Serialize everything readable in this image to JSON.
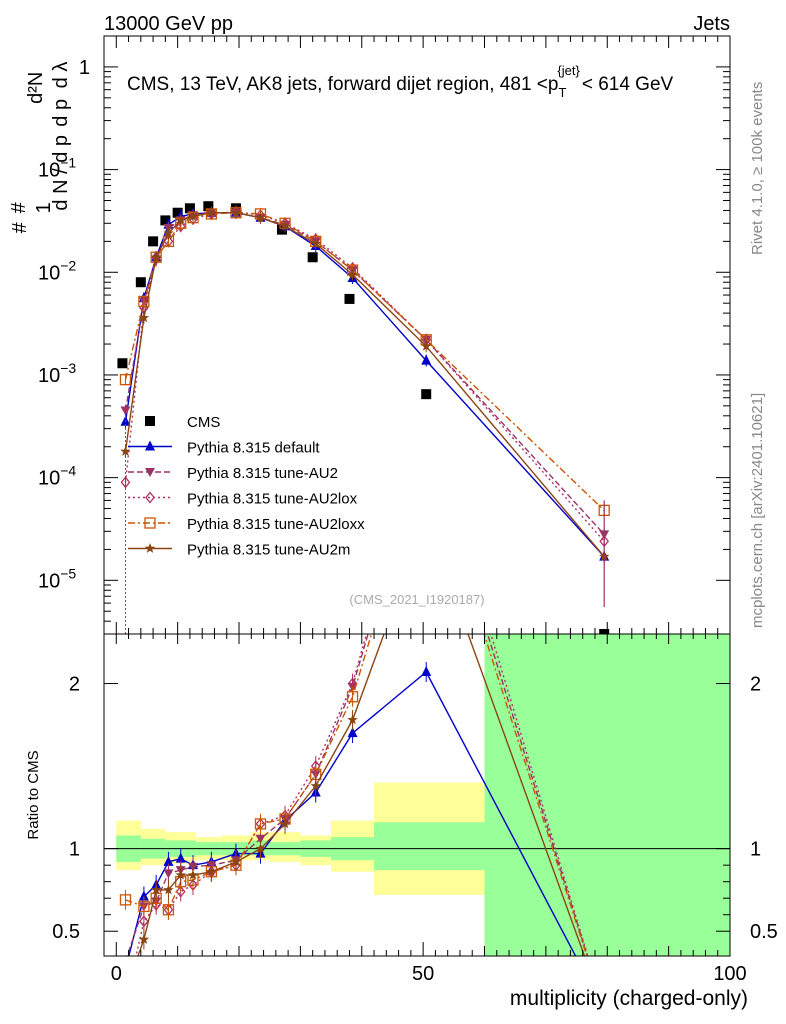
{
  "header": {
    "energy": "13000 GeV pp",
    "category": "Jets"
  },
  "side": {
    "rivet": "Rivet 4.1.0, ≥ 100k events",
    "mcplots": "mcplots.cern.ch [arXiv:2401.10621]"
  },
  "chart_data": [
    {
      "type": "scatter",
      "title": "CMS, 13 TeV, AK8 jets, forward dijet region, 481 <p_T^{jet}< 614 GeV",
      "title_parts": {
        "pre": "CMS, 13 TeV, AK8 jets, forward dijet region, 481 <p",
        "sub": "T",
        "sup": "{jet}",
        "post": "< 614 GeV"
      },
      "ylabel": "1/dN/dp_T  d²N/dp_T dλ",
      "ylabel_parts": {
        "num1": "#",
        "den1": "d N / d p",
        "num2": "#",
        "den2": "d p",
        "num3": "d²N",
        "den3": "d λ",
        "one": "1",
        "T": "T"
      },
      "yscale": "log",
      "ylim": [
        3e-06,
        2
      ],
      "xlim": [
        -2,
        100
      ],
      "yticks": [
        {
          "v": 1e-05,
          "base": "10",
          "exp": "−5"
        },
        {
          "v": 0.0001,
          "base": "10",
          "exp": "−4"
        },
        {
          "v": 0.001,
          "base": "10",
          "exp": "−3"
        },
        {
          "v": 0.01,
          "base": "10",
          "exp": "−2"
        },
        {
          "v": 0.1,
          "base": "10",
          "exp": "−1"
        },
        {
          "v": 1,
          "base": "1",
          "exp": ""
        }
      ],
      "watermark": "(CMS_2021_I1920187)",
      "series": [
        {
          "name": "CMS",
          "color": "#000000",
          "marker": "square",
          "style": "none",
          "x": [
            1,
            4,
            6,
            8,
            10,
            12,
            15,
            19.5,
            27,
            32,
            38,
            50.5,
            79.5
          ],
          "y": [
            0.0013,
            0.008,
            0.02,
            0.032,
            0.038,
            0.042,
            0.044,
            0.042,
            0.026,
            0.014,
            0.0055,
            0.00065,
            2.8e-06
          ]
        },
        {
          "name": "Pythia 8.315 default",
          "color": "#0000cc",
          "marker": "triangle-up",
          "style": "solid",
          "x": [
            1.5,
            4.5,
            6.5,
            8.5,
            10.5,
            12.5,
            15.5,
            19.5,
            23.5,
            27.5,
            32.5,
            38.5,
            50.5,
            79.5
          ],
          "y": [
            0.00035,
            0.0056,
            0.014,
            0.029,
            0.035,
            0.037,
            0.038,
            0.038,
            0.034,
            0.028,
            0.018,
            0.0088,
            0.00138,
            1.7e-05
          ]
        },
        {
          "name": "Pythia 8.315 tune-AU2",
          "color": "#993366",
          "marker": "triangle-down",
          "style": "dashed",
          "x": [
            1.5,
            4.5,
            6.5,
            8.5,
            10.5,
            12.5,
            15.5,
            19.5,
            23.5,
            27.5,
            32.5,
            38.5,
            50.5,
            79.5
          ],
          "y": [
            0.00045,
            0.0052,
            0.013,
            0.027,
            0.032,
            0.036,
            0.038,
            0.038,
            0.034,
            0.029,
            0.02,
            0.0105,
            0.0022,
            2.8e-05
          ]
        },
        {
          "name": "Pythia 8.315 tune-AU2lox",
          "color": "#b03060",
          "marker": "diamond-open",
          "style": "dotted",
          "x": [
            1.5,
            4.5,
            6.5,
            8.5,
            10.5,
            12.5,
            15.5,
            19.5,
            23.5,
            27.5,
            32.5,
            38.5,
            50.5,
            79.5
          ],
          "y": [
            9e-05,
            0.0045,
            0.014,
            0.02,
            0.028,
            0.033,
            0.037,
            0.039,
            0.036,
            0.03,
            0.021,
            0.011,
            0.0022,
            2.4e-05
          ]
        },
        {
          "name": "Pythia 8.315 tune-AU2loxx",
          "color": "#cc5500",
          "marker": "square-open",
          "style": "dashdot",
          "x": [
            1.5,
            4.5,
            6.5,
            8.5,
            10.5,
            12.5,
            15.5,
            19.5,
            23.5,
            27.5,
            32.5,
            38.5,
            50.5,
            79.5
          ],
          "y": [
            0.0009,
            0.0052,
            0.014,
            0.02,
            0.03,
            0.034,
            0.037,
            0.038,
            0.037,
            0.03,
            0.02,
            0.0105,
            0.0022,
            4.8e-05
          ]
        },
        {
          "name": "Pythia 8.315 tune-AU2m",
          "color": "#8b4513",
          "marker": "star",
          "style": "solid",
          "x": [
            1.5,
            4.5,
            6.5,
            8.5,
            10.5,
            12.5,
            15.5,
            19.5,
            23.5,
            27.5,
            32.5,
            38.5,
            50.5,
            79.5
          ],
          "y": [
            0.00018,
            0.0036,
            0.014,
            0.024,
            0.032,
            0.035,
            0.038,
            0.038,
            0.034,
            0.028,
            0.019,
            0.0095,
            0.0019,
            1.7e-05
          ]
        }
      ]
    },
    {
      "type": "line",
      "ylabel": "Ratio to CMS",
      "xlabel": "multiplicity (charged-only)",
      "ylim": [
        0.35,
        2.3
      ],
      "xlim": [
        -2,
        100
      ],
      "xticks": [
        0,
        50,
        100
      ],
      "yticks": [
        0.5,
        1,
        2
      ],
      "bands": [
        {
          "x0": 0,
          "x1": 4,
          "inner": [
            0.92,
            1.08
          ],
          "outer": [
            0.87,
            1.17
          ]
        },
        {
          "x0": 4,
          "x1": 8,
          "inner": [
            0.94,
            1.06
          ],
          "outer": [
            0.9,
            1.12
          ]
        },
        {
          "x0": 8,
          "x1": 13,
          "inner": [
            0.95,
            1.05
          ],
          "outer": [
            0.91,
            1.1
          ]
        },
        {
          "x0": 13,
          "x1": 17,
          "inner": [
            0.96,
            1.04
          ],
          "outer": [
            0.93,
            1.07
          ]
        },
        {
          "x0": 17,
          "x1": 22,
          "inner": [
            0.96,
            1.04
          ],
          "outer": [
            0.93,
            1.08
          ]
        },
        {
          "x0": 22,
          "x1": 25,
          "inner": [
            0.96,
            1.05
          ],
          "outer": [
            0.93,
            1.1
          ]
        },
        {
          "x0": 25,
          "x1": 30,
          "inner": [
            0.96,
            1.04
          ],
          "outer": [
            0.92,
            1.1
          ]
        },
        {
          "x0": 30,
          "x1": 35,
          "inner": [
            0.95,
            1.05
          ],
          "outer": [
            0.9,
            1.08
          ]
        },
        {
          "x0": 35,
          "x1": 42,
          "inner": [
            0.93,
            1.07
          ],
          "outer": [
            0.86,
            1.17
          ]
        },
        {
          "x0": 42,
          "x1": 60,
          "inner": [
            0.87,
            1.16
          ],
          "outer": [
            0.72,
            1.4
          ]
        },
        {
          "x0": 60,
          "x1": 100,
          "inner": [
            0.35,
            2.3
          ],
          "outer": [
            0.35,
            2.3
          ]
        }
      ],
      "series": [
        {
          "name": "Pythia 8.315 default",
          "color": "#0000cc",
          "x": [
            1.5,
            4.5,
            6.5,
            8.5,
            10.5,
            12.5,
            15.5,
            19.5,
            23.5,
            27.5,
            32.5,
            38.5,
            50.5,
            79.5
          ],
          "y": [
            0.27,
            0.71,
            0.78,
            0.92,
            0.94,
            0.9,
            0.92,
            0.97,
            0.97,
            1.17,
            1.34,
            1.7,
            2.07,
            0.02
          ]
        },
        {
          "name": "Pythia 8.315 tune-AU2",
          "color": "#993366",
          "x": [
            1.5,
            4.5,
            6.5,
            8.5,
            10.5,
            12.5,
            15.5,
            19.5,
            23.5,
            27.5,
            32.5,
            38.5,
            50.5,
            79.5
          ],
          "y": [
            0.32,
            0.65,
            0.68,
            0.85,
            0.87,
            0.89,
            0.9,
            0.93,
            1.06,
            1.18,
            1.45,
            1.98,
            3.5,
            0.02
          ]
        },
        {
          "name": "Pythia 8.315 tune-AU2lox",
          "color": "#b03060",
          "x": [
            1.5,
            4.5,
            6.5,
            8.5,
            10.5,
            12.5,
            15.5,
            19.5,
            23.5,
            27.5,
            32.5,
            38.5,
            50.5,
            79.5
          ],
          "y": [
            0.07,
            0.56,
            0.66,
            0.63,
            0.74,
            0.78,
            0.86,
            0.9,
            1.15,
            1.2,
            1.5,
            2.0,
            3.6,
            0.02
          ]
        },
        {
          "name": "Pythia 8.315 tune-AU2loxx",
          "color": "#cc5500",
          "x": [
            1.5,
            4.5,
            6.5,
            8.5,
            10.5,
            12.5,
            15.5,
            19.5,
            23.5,
            27.5,
            32.5,
            38.5,
            50.5,
            79.5
          ],
          "y": [
            0.69,
            0.65,
            0.7,
            0.63,
            0.8,
            0.81,
            0.86,
            0.9,
            1.15,
            1.18,
            1.45,
            1.92,
            3.4,
            0.02
          ]
        },
        {
          "name": "Pythia 8.315 tune-AU2m",
          "color": "#8b4513",
          "x": [
            1.5,
            4.5,
            6.5,
            8.5,
            10.5,
            12.5,
            15.5,
            19.5,
            23.5,
            27.5,
            32.5,
            38.5,
            50.5,
            79.5
          ],
          "y": [
            0.14,
            0.45,
            0.75,
            0.75,
            0.84,
            0.84,
            0.86,
            0.92,
            1.0,
            1.15,
            1.38,
            1.78,
            3.0,
            0.02
          ]
        }
      ]
    }
  ]
}
